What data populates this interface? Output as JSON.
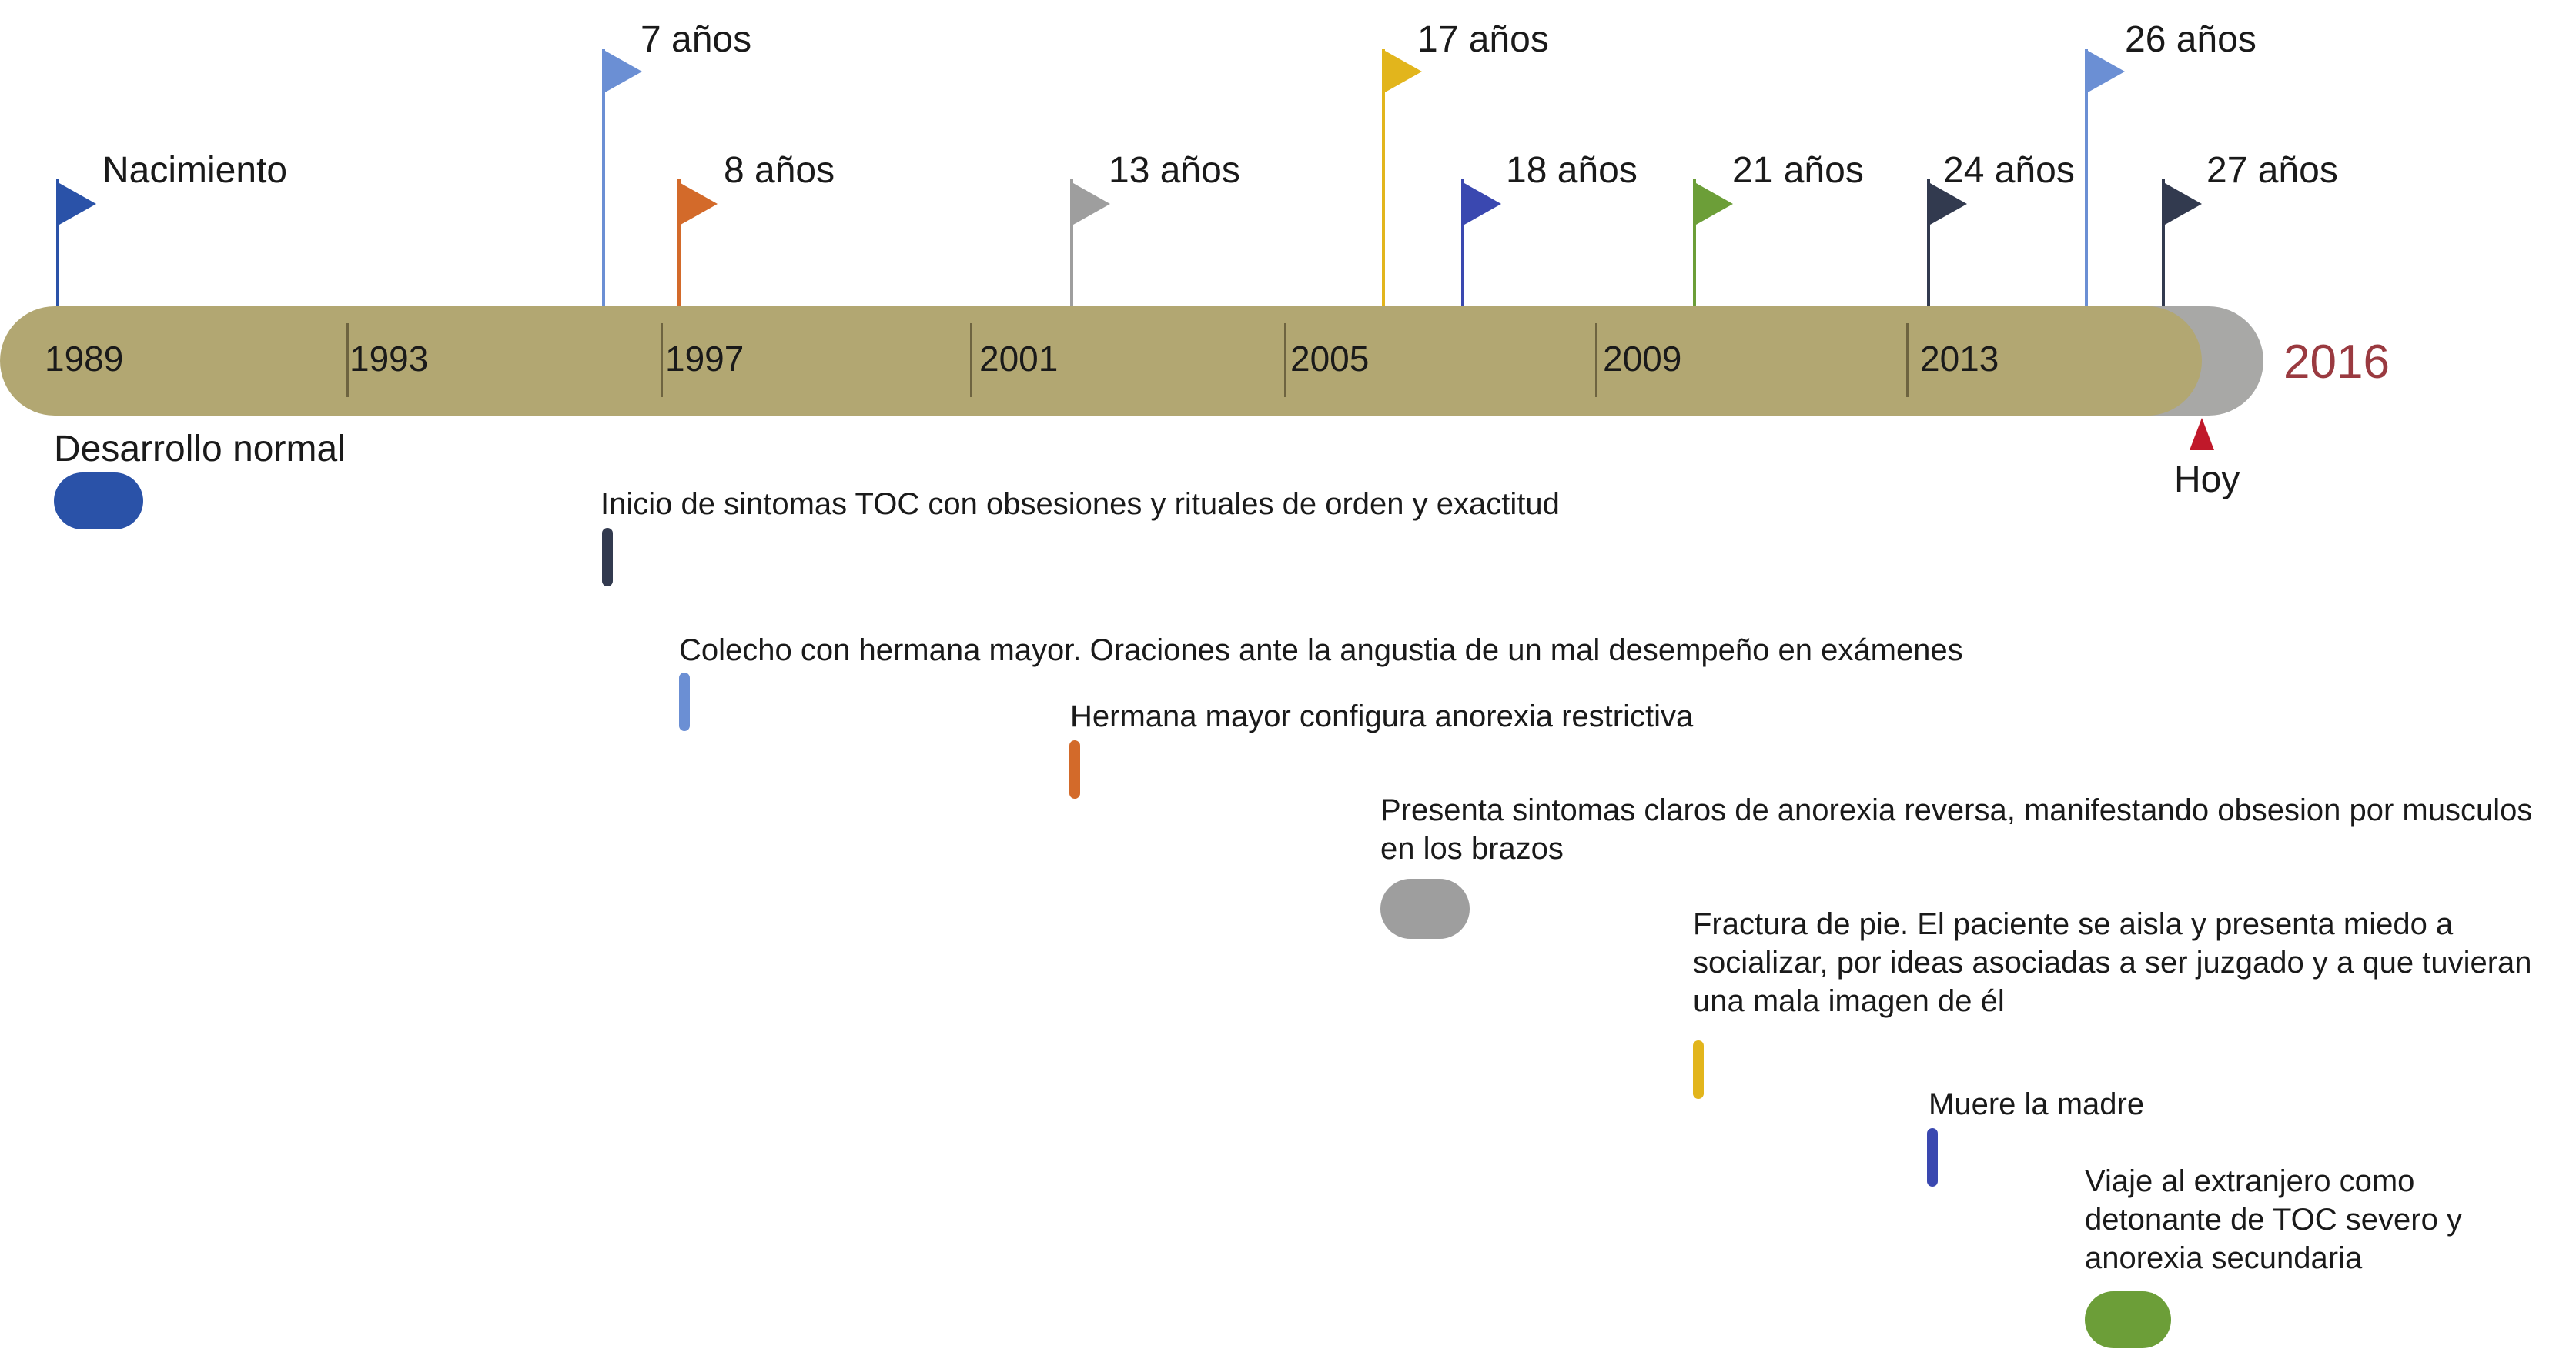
{
  "timeline": {
    "years": [
      "1989",
      "1993",
      "1997",
      "2001",
      "2005",
      "2009",
      "2013"
    ],
    "end_year": "2016",
    "today_label": "Hoy",
    "colors": {
      "bar": "#b2a772",
      "bar_end": "#a8a8a6",
      "end_year": "#9a3a40",
      "today_marker": "#c0182a"
    }
  },
  "flags": [
    {
      "label": "Nacimiento",
      "color": "#2a52a8",
      "icon": "flag-icon"
    },
    {
      "label": "7 años",
      "color": "#6b8fd4",
      "icon": "flag-icon"
    },
    {
      "label": "8 años",
      "color": "#d36a2a",
      "icon": "flag-icon"
    },
    {
      "label": "13 años",
      "color": "#9e9e9e",
      "icon": "flag-icon"
    },
    {
      "label": "17 años",
      "color": "#e2b51c",
      "icon": "flag-icon"
    },
    {
      "label": "18 años",
      "color": "#3a48b0",
      "icon": "flag-icon"
    },
    {
      "label": "21 años",
      "color": "#6c9e38",
      "icon": "flag-icon"
    },
    {
      "label": "24 años",
      "color": "#323a4f",
      "icon": "flag-icon"
    },
    {
      "label": "26 años",
      "color": "#6b8fd4",
      "icon": "flag-icon"
    },
    {
      "label": "27 años",
      "color": "#323a4f",
      "icon": "flag-icon"
    }
  ],
  "events": [
    {
      "text": "Desarrollo normal",
      "color": "#2a52a8"
    },
    {
      "text": "Inicio de sintomas TOC con obsesiones y rituales de orden y exactitud",
      "color": "#323a4f"
    },
    {
      "text": "Colecho con hermana mayor. Oraciones ante la angustia de un mal desempeño en exámenes",
      "color": "#6b8fd4"
    },
    {
      "text": "Hermana mayor configura anorexia restrictiva",
      "color": "#d36a2a"
    },
    {
      "text": "Presenta sintomas claros de anorexia reversa, manifestando obsesion por musculos en los brazos",
      "color": "#9e9e9e"
    },
    {
      "text": "Fractura de pie. El paciente se aisla y presenta miedo a socializar, por ideas asociadas a ser juzgado y a que tuvieran una mala imagen de él",
      "color": "#e2b51c"
    },
    {
      "text": "Muere la madre",
      "color": "#3a48b0"
    },
    {
      "text": "Viaje al extranjero como detonante de TOC severo y anorexia secundaria",
      "color": "#6c9e38"
    }
  ]
}
